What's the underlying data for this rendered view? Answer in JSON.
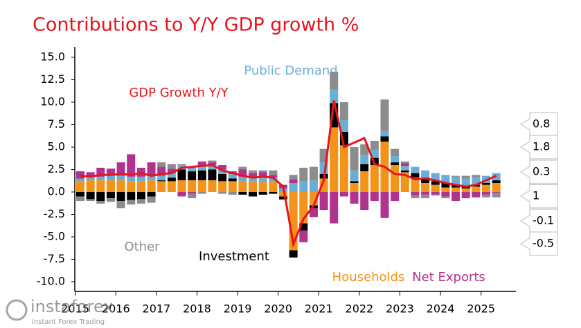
{
  "chart_data": {
    "type": "bar",
    "stacked": true,
    "title": "Contributions to Y/Y GDP growth %",
    "categories": [
      "2015",
      null,
      null,
      null,
      "2016",
      null,
      null,
      null,
      "2017",
      null,
      null,
      null,
      "2018",
      null,
      null,
      null,
      "2019",
      null,
      null,
      null,
      "2020",
      null,
      null,
      null,
      "2021",
      null,
      null,
      null,
      "2022",
      null,
      null,
      null,
      "2023",
      null,
      null,
      null,
      "2024",
      null,
      null,
      null,
      "2025",
      null
    ],
    "series": [
      {
        "name": "Households",
        "color": "#f39319",
        "values": [
          1.2,
          1.3,
          1.3,
          1.3,
          1.3,
          1.2,
          1.2,
          1.3,
          1.2,
          1.2,
          1.3,
          1.3,
          1.3,
          1.3,
          1.2,
          1.2,
          1.2,
          1.1,
          1.1,
          1.1,
          -0.5,
          -6.5,
          -3.5,
          -1.5,
          1.5,
          7.2,
          5.2,
          1.0,
          2.3,
          3.0,
          5.6,
          3.0,
          2.2,
          1.6,
          1.0,
          0.8,
          0.5,
          0.5,
          0.4,
          0.6,
          0.8,
          1.0
        ]
      },
      {
        "name": "Investment",
        "color": "#000000",
        "values": [
          -0.5,
          -0.8,
          -1.0,
          -0.7,
          -1.0,
          -0.9,
          -0.8,
          -0.5,
          0.1,
          0.4,
          1.2,
          1.0,
          1.1,
          1.2,
          0.8,
          0.3,
          -0.3,
          -0.5,
          -0.3,
          -0.2,
          -0.3,
          -0.8,
          -0.8,
          -0.3,
          0.5,
          2.7,
          1.5,
          0.2,
          0.8,
          0.8,
          0.6,
          0.3,
          0.2,
          0.5,
          0.6,
          0.4,
          0.5,
          0.3,
          0.3,
          0.2,
          0.2,
          0.3
        ]
      },
      {
        "name": "Public Demand",
        "color": "#6aaed6",
        "values": [
          0.3,
          0.4,
          0.4,
          0.5,
          0.5,
          0.5,
          0.5,
          0.5,
          0.5,
          0.5,
          0.5,
          0.5,
          0.5,
          0.5,
          0.5,
          0.5,
          0.5,
          0.5,
          0.5,
          0.5,
          0.4,
          1.0,
          1.2,
          1.3,
          1.3,
          1.5,
          1.3,
          1.2,
          1.0,
          0.9,
          0.6,
          0.7,
          0.5,
          0.7,
          0.8,
          0.9,
          0.9,
          0.9,
          0.8,
          0.8,
          0.8,
          0.8
        ]
      },
      {
        "name": "Net Exports",
        "color": "#b0338f",
        "values": [
          0.8,
          0.5,
          1.0,
          0.8,
          1.5,
          2.5,
          1.0,
          1.5,
          1.0,
          0.5,
          -0.5,
          -0.2,
          0.5,
          0.3,
          0.5,
          0.3,
          0.8,
          0.5,
          0.6,
          0.3,
          0.4,
          0.4,
          -1.3,
          -1.0,
          -2.0,
          -3.5,
          -0.5,
          -1.3,
          -2.0,
          -1.0,
          -2.9,
          -1.0,
          0.3,
          -0.4,
          -0.3,
          -0.3,
          -0.5,
          -1.0,
          -0.7,
          -0.6,
          -0.3,
          -0.1
        ]
      },
      {
        "name": "Other",
        "color": "#8c8c8c",
        "values": [
          -0.5,
          -0.2,
          -0.3,
          -0.4,
          -0.8,
          -0.5,
          -0.5,
          -0.7,
          0.5,
          0.5,
          0.1,
          -0.5,
          -0.2,
          0.2,
          -0.2,
          -0.3,
          0.3,
          0.3,
          0.2,
          0.5,
          -0.1,
          0.5,
          1.5,
          1.5,
          1.5,
          2.0,
          2.0,
          2.6,
          1.2,
          1.0,
          3.5,
          0.8,
          0.2,
          -0.3,
          -0.4,
          -0.1,
          -0.2,
          0.1,
          0.3,
          0.3,
          -0.3,
          -0.5
        ]
      },
      {
        "name": "GDP Growth Y/Y",
        "type": "line",
        "color": "#e8141c",
        "values": [
          1.8,
          1.7,
          1.9,
          1.9,
          2.0,
          1.9,
          2.1,
          1.8,
          2.0,
          2.1,
          2.7,
          2.8,
          2.9,
          3.0,
          2.4,
          2.1,
          1.8,
          1.6,
          1.7,
          1.6,
          0.6,
          -5.8,
          -3.0,
          -1.5,
          1.3,
          10.2,
          5.0,
          5.5,
          6.0,
          3.1,
          2.8,
          2.0,
          1.9,
          1.4,
          1.5,
          1.3,
          1.0,
          0.8,
          0.6,
          0.8,
          1.3,
          1.8
        ]
      }
    ],
    "ylim": [
      -11,
      16.5
    ],
    "yticks": [
      {
        "value": -10,
        "label": "-10.0"
      },
      {
        "value": -7.5,
        "label": "-7.5"
      },
      {
        "value": -5,
        "label": "-5.0"
      },
      {
        "value": -2.5,
        "label": "-2.5"
      },
      {
        "value": 0,
        "label": "0.0"
      },
      {
        "value": 2.5,
        "label": "2.5"
      },
      {
        "value": 5,
        "label": "5.0"
      },
      {
        "value": 7.5,
        "label": "7.5"
      },
      {
        "value": 10,
        "label": "10.0"
      },
      {
        "value": 12.5,
        "label": "12.5"
      },
      {
        "value": 15,
        "label": "15.0"
      }
    ]
  },
  "watermark": {
    "name": "instaforex",
    "tagline": "Instant Forex Trading"
  }
}
